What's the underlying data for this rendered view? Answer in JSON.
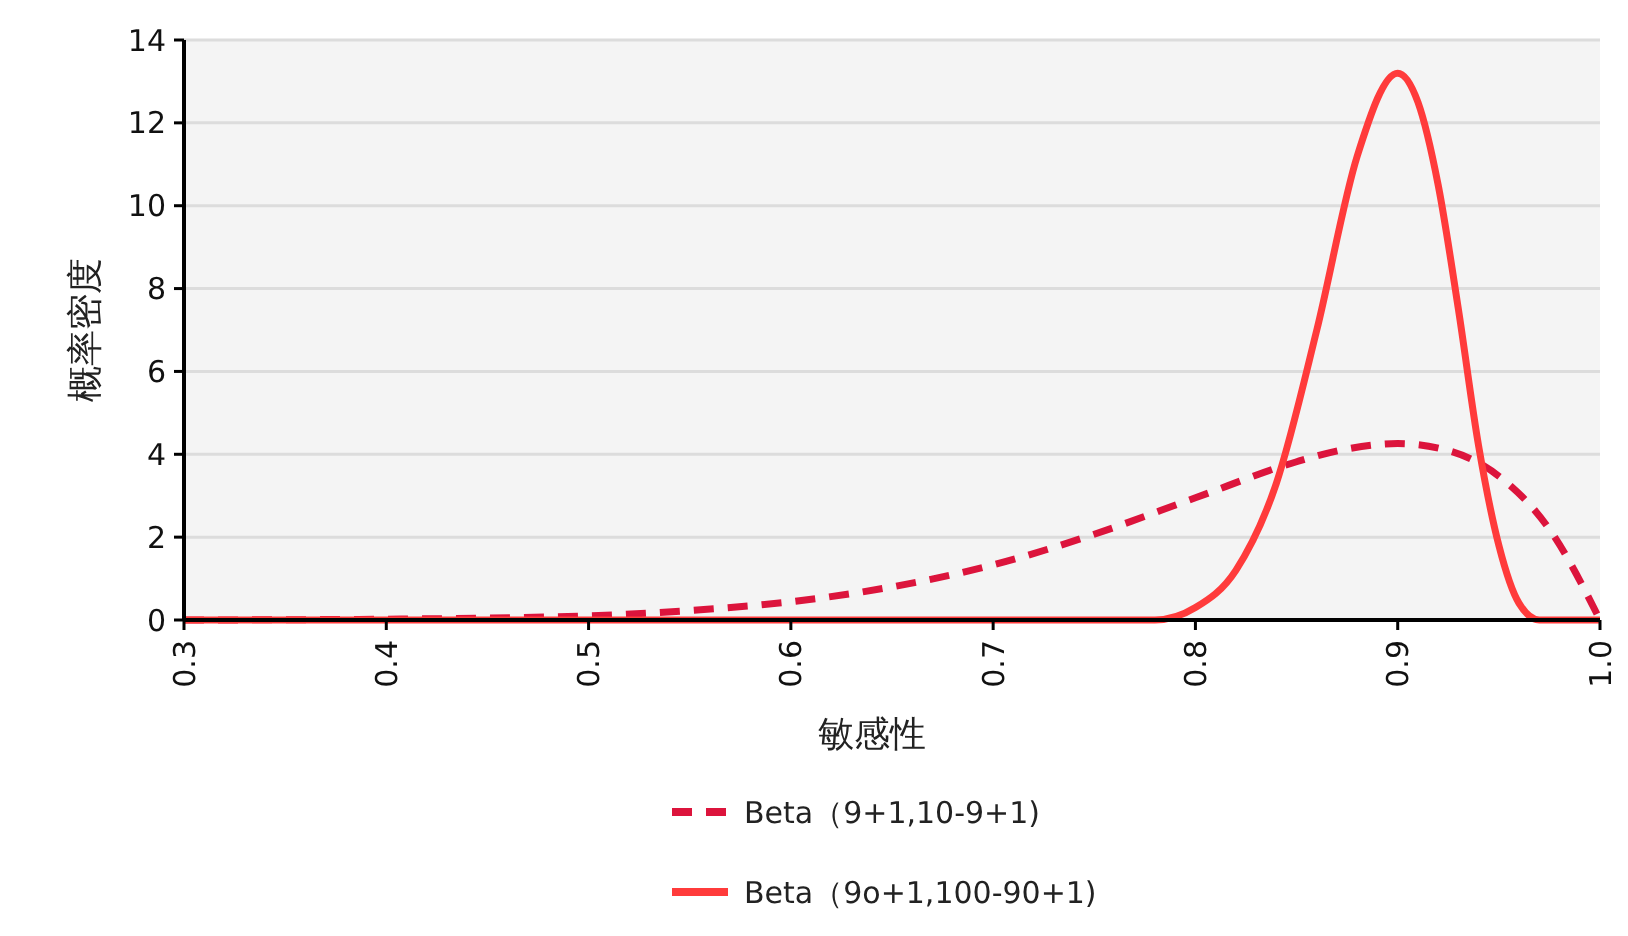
{
  "chart_data": {
    "type": "line",
    "xlabel": "敏感性",
    "ylabel": "概率密度",
    "xlim": [
      0.3,
      1
    ],
    "xticks": [
      0.3,
      0.4,
      0.5,
      0.6,
      0.7,
      0.8,
      0.9,
      {
        "value": 1,
        "label": "1.0"
      }
    ],
    "ylim": [
      0,
      14
    ],
    "yticks": [
      0,
      2,
      4,
      6,
      8,
      10,
      12,
      14
    ],
    "grid": "y",
    "legend": "bottom",
    "series": [
      {
        "name": "Beta（9+1,10-9+1)",
        "color": "#dc143c",
        "line_style": "dashed",
        "x": [
          0.3,
          0.4,
          0.5,
          0.55,
          0.6,
          0.65,
          0.7,
          0.75,
          0.8,
          0.85,
          0.875,
          0.9,
          0.925,
          0.95,
          0.975,
          1
        ],
        "values": [
          0,
          0.02,
          0.1,
          0.23,
          0.44,
          0.8,
          1.33,
          2.07,
          2.95,
          3.82,
          4.13,
          4.26,
          4.09,
          3.47,
          2.19,
          0
        ]
      },
      {
        "name": "Beta（9o+1,100-90+1)",
        "color": "#ff3b3b",
        "line_style": "solid",
        "x": [
          0.3,
          0.78,
          0.8,
          0.82,
          0.84,
          0.86,
          0.88,
          0.9,
          0.91,
          0.92,
          0.93,
          0.94,
          0.95,
          0.96,
          0.97,
          1
        ],
        "values": [
          0,
          0,
          0.3,
          1.2,
          3.3,
          7,
          11.2,
          13.2,
          12.5,
          10.5,
          7.5,
          4.2,
          1.8,
          0.4,
          0,
          0
        ]
      }
    ]
  }
}
